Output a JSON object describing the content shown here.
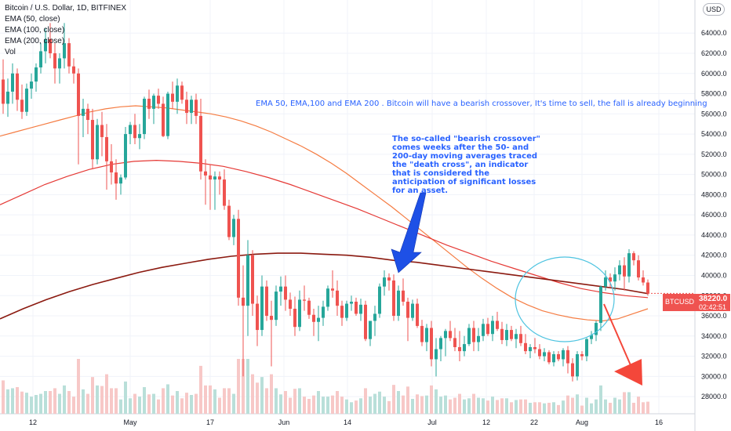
{
  "chart_data": {
    "type": "candlestick",
    "title": "Bitcoin / U.S. Dollar, 1D, BITFINEX",
    "indicators": [
      {
        "name": "EMA (50, close)",
        "color": "#f57c42"
      },
      {
        "name": "EMA (100, close)",
        "color": "#e53935"
      },
      {
        "name": "EMA (200, close)",
        "color": "#8b1a10"
      },
      {
        "name": "Vol",
        "color": "#f4c6c6"
      }
    ],
    "currency": "USD",
    "ylim": [
      27000,
      66500
    ],
    "y_ticks": [
      28000,
      30000,
      32000,
      34000,
      36000,
      38000,
      40000,
      42000,
      44000,
      46000,
      48000,
      50000,
      52000,
      54000,
      56000,
      58000,
      60000,
      62000,
      64000
    ],
    "x_ticks": [
      "12",
      "May",
      "17",
      "Jun",
      "14",
      "Jul",
      "12",
      "22",
      "Aug",
      "16"
    ],
    "last_price": {
      "symbol": "BTCUSD",
      "price": "38220.0",
      "countdown": "02:42:51"
    },
    "candles": [
      [
        59400,
        61400,
        56000,
        57000
      ],
      [
        57000,
        59500,
        55700,
        58200
      ],
      [
        58200,
        61000,
        57000,
        60000
      ],
      [
        60000,
        60500,
        56300,
        57400
      ],
      [
        57400,
        58900,
        55500,
        56200
      ],
      [
        56200,
        59000,
        55800,
        58500
      ],
      [
        58500,
        60000,
        57500,
        59200
      ],
      [
        59200,
        61000,
        58200,
        60600
      ],
      [
        60600,
        63000,
        60000,
        62200
      ],
      [
        62200,
        64500,
        61000,
        63400
      ],
      [
        63400,
        65000,
        61500,
        62000
      ],
      [
        62000,
        63000,
        59000,
        60500
      ],
      [
        60500,
        62000,
        59000,
        61500
      ],
      [
        61500,
        65000,
        60500,
        63000
      ],
      [
        63000,
        63500,
        60000,
        60700
      ],
      [
        60700,
        61500,
        59000,
        60000
      ],
      [
        60000,
        60500,
        51000,
        55800
      ],
      [
        55800,
        57500,
        53700,
        56500
      ],
      [
        56500,
        57000,
        54000,
        55400
      ],
      [
        55400,
        56500,
        50500,
        51500
      ],
      [
        51500,
        55500,
        51000,
        54900
      ],
      [
        54900,
        56200,
        51800,
        53700
      ],
      [
        53700,
        55000,
        48500,
        51300
      ],
      [
        51300,
        53000,
        49000,
        50200
      ],
      [
        50200,
        51500,
        47500,
        49100
      ],
      [
        49100,
        50000,
        48000,
        49700
      ],
      [
        49700,
        54700,
        49500,
        54000
      ],
      [
        54000,
        55200,
        53000,
        54900
      ],
      [
        54900,
        56000,
        53000,
        53600
      ],
      [
        53600,
        55000,
        52500,
        54000
      ],
      [
        54000,
        57700,
        53500,
        57500
      ],
      [
        57500,
        58400,
        55500,
        56500
      ],
      [
        56500,
        58000,
        55000,
        57800
      ],
      [
        57800,
        58500,
        56500,
        57000
      ],
      [
        57000,
        57700,
        53700,
        53800
      ],
      [
        53800,
        58200,
        53500,
        58000
      ],
      [
        58000,
        59200,
        56500,
        57200
      ],
      [
        57200,
        59500,
        56000,
        58800
      ],
      [
        58800,
        59200,
        57000,
        57400
      ],
      [
        57400,
        58200,
        55000,
        56100
      ],
      [
        56100,
        57800,
        55000,
        57400
      ],
      [
        57400,
        58000,
        55000,
        55800
      ],
      [
        55800,
        57500,
        49500,
        50300
      ],
      [
        50300,
        51500,
        47000,
        49900
      ],
      [
        49900,
        51000,
        46500,
        49500
      ],
      [
        49500,
        50300,
        46500,
        49800
      ],
      [
        49800,
        50300,
        48000,
        49500
      ],
      [
        49500,
        50500,
        46500,
        46900
      ],
      [
        46900,
        47500,
        43500,
        43800
      ],
      [
        43800,
        46000,
        43000,
        45600
      ],
      [
        45600,
        46500,
        37000,
        37800
      ],
      [
        37800,
        41000,
        30000,
        37000
      ],
      [
        37000,
        43500,
        34000,
        42000
      ],
      [
        42000,
        42500,
        36000,
        37200
      ],
      [
        37200,
        38000,
        33000,
        34600
      ],
      [
        34600,
        40000,
        34000,
        38900
      ],
      [
        38900,
        39500,
        35500,
        36000
      ],
      [
        36000,
        37500,
        31000,
        35600
      ],
      [
        35600,
        39000,
        35000,
        38400
      ],
      [
        38400,
        39900,
        37000,
        38900
      ],
      [
        38900,
        40000,
        36500,
        37600
      ],
      [
        37600,
        38300,
        36000,
        36700
      ],
      [
        36700,
        37900,
        34000,
        34900
      ],
      [
        34900,
        38500,
        34500,
        37600
      ],
      [
        37600,
        39000,
        36500,
        37500
      ],
      [
        37500,
        37800,
        35700,
        36100
      ],
      [
        36100,
        36700,
        34000,
        35400
      ],
      [
        35400,
        37000,
        33500,
        35800
      ],
      [
        35800,
        37500,
        35000,
        36900
      ],
      [
        36900,
        39000,
        36500,
        38700
      ],
      [
        38700,
        40500,
        37800,
        38500
      ],
      [
        38500,
        39500,
        36000,
        37000
      ],
      [
        37000,
        37500,
        35000,
        35800
      ],
      [
        35800,
        37500,
        35500,
        37200
      ],
      [
        37200,
        38000,
        36500,
        37400
      ],
      [
        37400,
        37800,
        36000,
        36200
      ],
      [
        36200,
        37700,
        35500,
        37100
      ],
      [
        37100,
        37500,
        33500,
        33700
      ],
      [
        33700,
        35500,
        33000,
        35500
      ],
      [
        35500,
        37000,
        34000,
        36200
      ],
      [
        36200,
        39200,
        35800,
        38900
      ],
      [
        38900,
        40500,
        38000,
        39800
      ],
      [
        39800,
        40200,
        38500,
        39500
      ],
      [
        39500,
        40100,
        35500,
        36000
      ],
      [
        36000,
        39000,
        35500,
        38500
      ],
      [
        38500,
        39700,
        37000,
        37400
      ],
      [
        37400,
        37800,
        33500,
        35800
      ],
      [
        35800,
        37600,
        35500,
        37200
      ],
      [
        37200,
        37700,
        34800,
        35000
      ],
      [
        35000,
        35600,
        33000,
        33400
      ],
      [
        33400,
        35200,
        32500,
        34800
      ],
      [
        34800,
        35500,
        31000,
        31700
      ],
      [
        31700,
        33800,
        30000,
        32700
      ],
      [
        32700,
        34000,
        31500,
        33800
      ],
      [
        33800,
        34700,
        32000,
        34500
      ],
      [
        34500,
        35500,
        33500,
        33800
      ],
      [
        33800,
        34800,
        32500,
        32900
      ],
      [
        32900,
        34500,
        31500,
        32500
      ],
      [
        32500,
        34000,
        32000,
        33200
      ],
      [
        33200,
        35200,
        33000,
        34800
      ],
      [
        34800,
        35500,
        32500,
        33400
      ],
      [
        33400,
        34800,
        32500,
        34000
      ],
      [
        34000,
        35700,
        33500,
        35200
      ],
      [
        35200,
        35800,
        34000,
        34200
      ],
      [
        34200,
        36000,
        33500,
        35500
      ],
      [
        35500,
        36400,
        34500,
        34700
      ],
      [
        34700,
        35400,
        33200,
        33600
      ],
      [
        33600,
        35200,
        33000,
        34600
      ],
      [
        34600,
        35000,
        33500,
        33700
      ],
      [
        33700,
        34700,
        32800,
        34200
      ],
      [
        34200,
        35000,
        33000,
        33300
      ],
      [
        33300,
        34200,
        32200,
        32500
      ],
      [
        32500,
        33200,
        31800,
        32900
      ],
      [
        32900,
        33800,
        32300,
        32700
      ],
      [
        32700,
        33200,
        31700,
        32000
      ],
      [
        32000,
        32800,
        31500,
        32400
      ],
      [
        32400,
        32600,
        31200,
        31400
      ],
      [
        31400,
        32500,
        31000,
        32200
      ],
      [
        32200,
        32500,
        31500,
        31700
      ],
      [
        31700,
        32800,
        31000,
        32600
      ],
      [
        32600,
        33000,
        30300,
        31300
      ],
      [
        31300,
        31800,
        29500,
        30000
      ],
      [
        30000,
        32500,
        29600,
        32200
      ],
      [
        32200,
        32500,
        31600,
        32000
      ],
      [
        32000,
        33800,
        31500,
        33700
      ],
      [
        33700,
        34500,
        33200,
        34100
      ],
      [
        34100,
        35500,
        33500,
        35300
      ],
      [
        35300,
        39000,
        34500,
        38900
      ],
      [
        38900,
        40500,
        38500,
        39800
      ],
      [
        39800,
        40200,
        38800,
        39400
      ],
      [
        39400,
        40800,
        38500,
        40100
      ],
      [
        40100,
        41500,
        39500,
        41000
      ],
      [
        41000,
        41800,
        38500,
        39900
      ],
      [
        39900,
        42600,
        39300,
        42200
      ],
      [
        42200,
        42400,
        41000,
        41500
      ],
      [
        41500,
        42000,
        39500,
        39800
      ],
      [
        39800,
        40500,
        39000,
        39300
      ],
      [
        39300,
        39600,
        38000,
        38220
      ]
    ],
    "ema50": [
      53800,
      54200,
      54600,
      55000,
      55400,
      55800,
      56200,
      56500,
      56700,
      56800,
      56700,
      56600,
      56400,
      56200,
      56000,
      55700,
      55300,
      54800,
      54200,
      53500,
      52800,
      52000,
      51100,
      50100,
      49000,
      47900,
      46800,
      45600,
      44400,
      43200,
      42000,
      40800,
      39700,
      38700,
      37800,
      37100,
      36500,
      36100,
      35800,
      35600,
      35500,
      35700,
      36200,
      36700
    ],
    "ema100": [
      47000,
      48000,
      49000,
      49800,
      50500,
      51000,
      51300,
      51400,
      51300,
      51100,
      50800,
      50300,
      49700,
      49000,
      48200,
      47400,
      46600,
      45700,
      44800,
      43900,
      43000,
      42200,
      41400,
      40700,
      40000,
      39300,
      38700,
      38300,
      38000,
      37800
    ],
    "ema200": [
      35700,
      36700,
      37600,
      38400,
      39100,
      39700,
      40300,
      40800,
      41200,
      41600,
      41900,
      42100,
      42200,
      42200,
      42100,
      42000,
      41800,
      41500,
      41300,
      41000,
      40700,
      40400,
      40100,
      39800,
      39500,
      39200,
      38900,
      38600,
      38200
    ]
  },
  "annotations": {
    "top_note": "EMA 50, EMA,100 and EMA 200 . Bitcoin will have a bearish crossover, It's time to sell, the fall is already beginning",
    "box_note": "The so-called \"bearish crossover\" comes weeks after the 50- and 200-day moving averages traced the \"death cross\", an indicator that is considered the anticipation of significant losses for an asset."
  },
  "colors": {
    "up": "#26a69a",
    "down": "#ef5350",
    "up_vol": "#b9dfd9",
    "down_vol": "#f7c8c7",
    "annotation": "#2962ff",
    "circle": "#4dc3e0",
    "arrow_red": "#f4473a"
  }
}
